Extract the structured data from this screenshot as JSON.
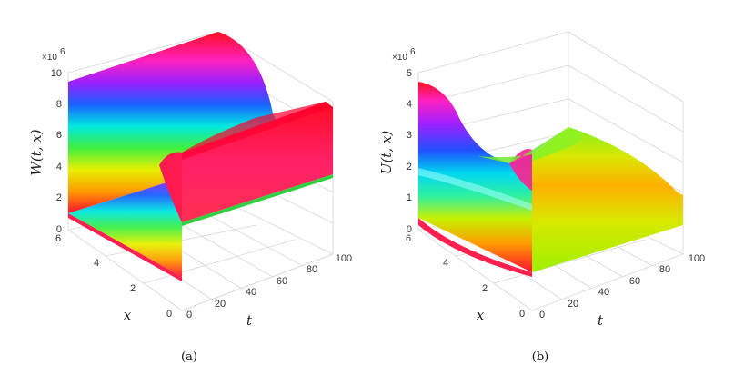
{
  "chart_data": [
    {
      "type": "surface",
      "panel_label": "(a)",
      "zlabel": "W(t, x)",
      "xlabel": "t",
      "ylabel": "x",
      "multiplier": "×10",
      "multiplier_exp": "6",
      "t_ticks": [
        "0",
        "20",
        "40",
        "60",
        "80",
        "100"
      ],
      "x_ticks": [
        "0",
        "2",
        "4",
        "6"
      ],
      "z_ticks": [
        "0",
        "2",
        "4",
        "6",
        "8",
        "10"
      ],
      "t_range": [
        0,
        100
      ],
      "x_range": [
        0,
        6
      ],
      "z_range": [
        0,
        10
      ],
      "colormap": "hsv",
      "grid": true,
      "profile_over_x": {
        "x": [
          0,
          2.5,
          3,
          3.5,
          6
        ],
        "z": [
          3.5,
          3.6,
          2.6,
          3.6,
          9.4
        ]
      },
      "profile_over_t": {
        "t": [
          0,
          40,
          100
        ],
        "z": [
          9.4,
          9.4,
          8.6
        ]
      }
    },
    {
      "type": "surface",
      "panel_label": "(b)",
      "zlabel": "U(t, x)",
      "xlabel": "t",
      "ylabel": "x",
      "multiplier": "×10",
      "multiplier_exp": "6",
      "t_ticks": [
        "0",
        "20",
        "40",
        "60",
        "80",
        "100"
      ],
      "x_ticks": [
        "0",
        "2",
        "4",
        "6"
      ],
      "z_ticks": [
        "0",
        "1",
        "2",
        "3",
        "4",
        "5"
      ],
      "t_range": [
        0,
        100
      ],
      "x_range": [
        0,
        6
      ],
      "z_range": [
        0,
        5
      ],
      "colormap": "hsv",
      "grid": true,
      "profile_over_x": {
        "x": [
          0,
          2,
          4,
          6
        ],
        "z": [
          2.5,
          1.8,
          1.3,
          4.5
        ]
      },
      "profile_over_t": {
        "t": [
          0,
          40,
          100
        ],
        "z": [
          4.6,
          2.2,
          2.4
        ]
      }
    }
  ]
}
